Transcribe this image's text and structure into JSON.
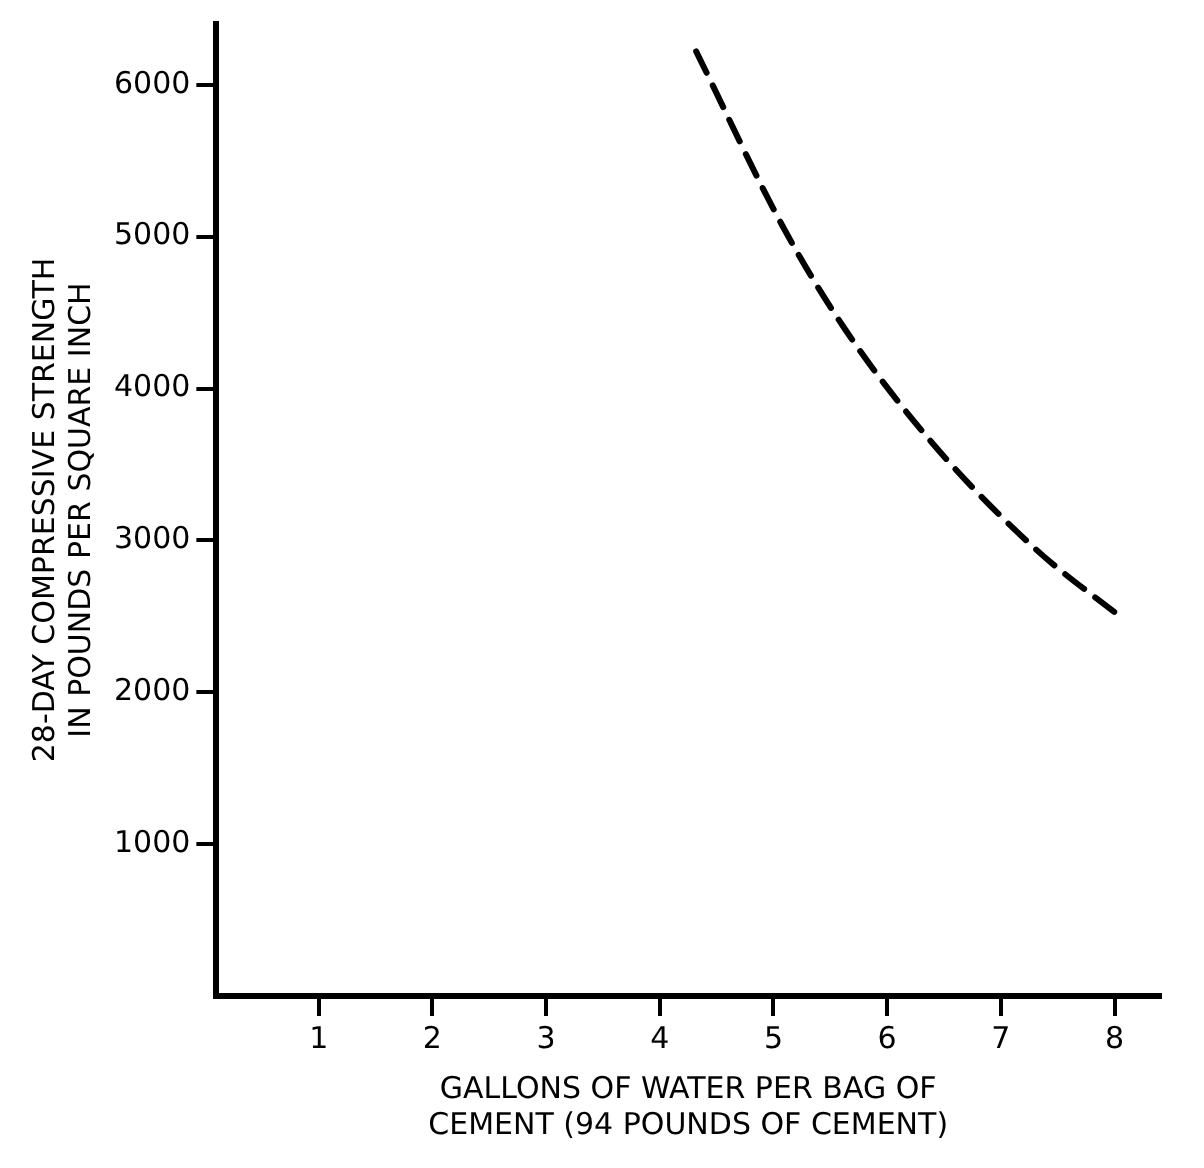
{
  "chart_data": {
    "type": "line",
    "xlabel": "GALLONS OF WATER PER BAG OF\nCEMENT (94 POUNDS OF CEMENT)",
    "ylabel": "28-DAY COMPRESSIVE STRENGTH\nIN POUNDS PER SQUARE INCH",
    "x": [
      4.32,
      5.08,
      5.63,
      6.41,
      7.31,
      8.08
    ],
    "series": [
      {
        "color": "#000000",
        "values": [
          6220,
          5070,
          4390,
          3630,
          2940,
          2480
        ]
      }
    ],
    "xlim": [
      0.1,
      8.4
    ],
    "xticks": [
      1,
      2,
      3,
      4,
      5,
      6,
      7,
      8
    ],
    "ylim": [
      0,
      6400
    ],
    "yticks": [
      1000,
      2000,
      3000,
      4000,
      5000,
      6000
    ],
    "grid": false,
    "legend": false,
    "marker": "none",
    "line_style": "dashed"
  }
}
